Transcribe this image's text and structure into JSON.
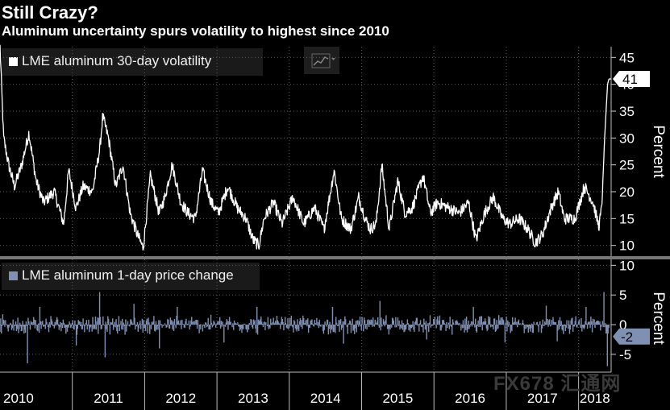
{
  "header": {
    "title": "Still Crazy?",
    "subtitle": "Aluminum uncertainty spurs volatility to highest since 2010"
  },
  "watermark": "FX678 汇通网",
  "colors": {
    "background": "#000000",
    "volatility_line": "#ffffff",
    "price_change_bars": "#7f90b3",
    "last_value_bg_top": "#ffffff",
    "last_value_bg_bottom": "#7f90b3",
    "grid": "#5a5a5a",
    "separator": "#777777"
  },
  "chart_data": [
    {
      "type": "line",
      "title": "",
      "legend": "LME aluminum 30-day volatility",
      "ylabel": "Percent",
      "ylim": [
        8,
        47
      ],
      "yticks": [
        10,
        15,
        20,
        25,
        30,
        35,
        40,
        45
      ],
      "grid": true,
      "legend_placement": "top-left",
      "last_value_label": "41",
      "x_start": 2010.0,
      "x_end": 2018.45,
      "x_step": 0.0385,
      "anchors": [
        [
          2010.0,
          47
        ],
        [
          2010.05,
          30
        ],
        [
          2010.12,
          25
        ],
        [
          2010.2,
          21
        ],
        [
          2010.3,
          25
        ],
        [
          2010.4,
          31
        ],
        [
          2010.5,
          22
        ],
        [
          2010.6,
          18
        ],
        [
          2010.75,
          20
        ],
        [
          2010.88,
          14
        ],
        [
          2010.95,
          24
        ],
        [
          2011.05,
          17
        ],
        [
          2011.15,
          21
        ],
        [
          2011.28,
          20
        ],
        [
          2011.38,
          28
        ],
        [
          2011.42,
          34
        ],
        [
          2011.5,
          30
        ],
        [
          2011.6,
          21
        ],
        [
          2011.7,
          25
        ],
        [
          2011.8,
          16
        ],
        [
          2011.9,
          12
        ],
        [
          2011.98,
          9.5
        ],
        [
          2012.08,
          23
        ],
        [
          2012.2,
          16
        ],
        [
          2012.28,
          19
        ],
        [
          2012.38,
          25
        ],
        [
          2012.5,
          18
        ],
        [
          2012.6,
          16
        ],
        [
          2012.7,
          15
        ],
        [
          2012.8,
          24
        ],
        [
          2012.92,
          18
        ],
        [
          2013.02,
          16
        ],
        [
          2013.15,
          21
        ],
        [
          2013.28,
          17
        ],
        [
          2013.4,
          15
        ],
        [
          2013.5,
          11
        ],
        [
          2013.58,
          10
        ],
        [
          2013.65,
          15
        ],
        [
          2013.78,
          18
        ],
        [
          2013.9,
          14
        ],
        [
          2014.05,
          19
        ],
        [
          2014.2,
          14
        ],
        [
          2014.35,
          17
        ],
        [
          2014.48,
          13
        ],
        [
          2014.62,
          24
        ],
        [
          2014.72,
          15
        ],
        [
          2014.85,
          13
        ],
        [
          2014.96,
          19
        ],
        [
          2015.05,
          15
        ],
        [
          2015.12,
          13
        ],
        [
          2015.2,
          14
        ],
        [
          2015.28,
          25
        ],
        [
          2015.38,
          13
        ],
        [
          2015.5,
          22
        ],
        [
          2015.6,
          16
        ],
        [
          2015.7,
          17
        ],
        [
          2015.85,
          23
        ],
        [
          2015.95,
          16
        ],
        [
          2016.05,
          18
        ],
        [
          2016.2,
          17
        ],
        [
          2016.35,
          16
        ],
        [
          2016.48,
          18
        ],
        [
          2016.58,
          11
        ],
        [
          2016.7,
          16
        ],
        [
          2016.82,
          19
        ],
        [
          2016.95,
          15
        ],
        [
          2017.05,
          14
        ],
        [
          2017.18,
          15
        ],
        [
          2017.3,
          13
        ],
        [
          2017.4,
          10.5
        ],
        [
          2017.5,
          12
        ],
        [
          2017.62,
          17
        ],
        [
          2017.72,
          20
        ],
        [
          2017.8,
          15
        ],
        [
          2017.95,
          15
        ],
        [
          2018.08,
          21
        ],
        [
          2018.2,
          18
        ],
        [
          2018.28,
          13.5
        ],
        [
          2018.32,
          17
        ],
        [
          2018.36,
          30
        ],
        [
          2018.4,
          40
        ],
        [
          2018.42,
          41
        ]
      ]
    },
    {
      "type": "bar",
      "title": "",
      "legend": "LME aluminum 1-day price change",
      "ylabel": "Percent",
      "ylim": [
        -8,
        11
      ],
      "yticks": [
        -5,
        0,
        5,
        10
      ],
      "grid": true,
      "legend_placement": "top-left",
      "last_value_label": "-2",
      "x_start": 2010.0,
      "x_end": 2018.42,
      "x_step": 0.0095,
      "noise_amplitude": 1.8,
      "spikes": [
        [
          2010.38,
          -6.5
        ],
        [
          2010.55,
          3.0
        ],
        [
          2011.05,
          -3.5
        ],
        [
          2011.38,
          5.5
        ],
        [
          2011.45,
          -5.5
        ],
        [
          2011.85,
          3.5
        ],
        [
          2012.2,
          -4.0
        ],
        [
          2012.45,
          3.0
        ],
        [
          2013.1,
          -3.0
        ],
        [
          2013.55,
          3.0
        ],
        [
          2014.6,
          3.0
        ],
        [
          2014.75,
          -3.2
        ],
        [
          2015.25,
          4.0
        ],
        [
          2015.9,
          -2.5
        ],
        [
          2016.55,
          3.0
        ],
        [
          2016.98,
          -3.0
        ],
        [
          2017.55,
          3.2
        ],
        [
          2017.7,
          -2.8
        ],
        [
          2018.1,
          3.0
        ],
        [
          2018.35,
          5.5
        ],
        [
          2018.4,
          -7.0
        ]
      ]
    }
  ],
  "x_axis": {
    "labels": [
      "2010",
      "2011",
      "2012",
      "2013",
      "2014",
      "2015",
      "2016",
      "2017",
      "2018"
    ],
    "range": [
      2010.0,
      2018.45
    ]
  }
}
